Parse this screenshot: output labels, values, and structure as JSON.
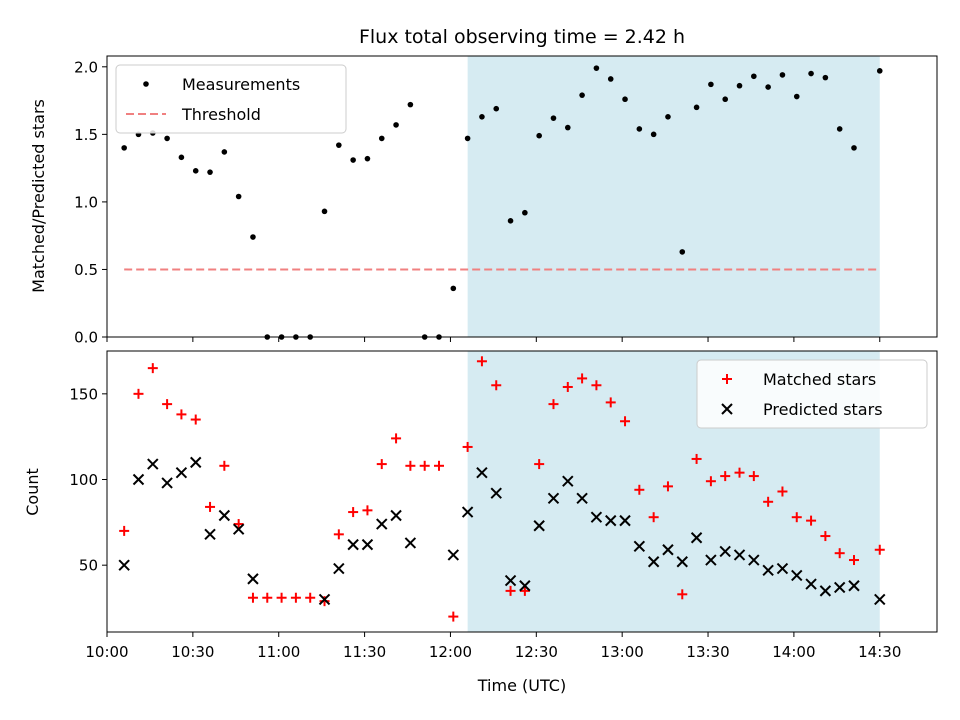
{
  "chart_data": {
    "type": "scatter",
    "title": "Flux total observing time = 2.42 h",
    "xlabel": "Time (UTC)",
    "xlim": [
      "10:00",
      "14:50"
    ],
    "x_tick_labels": [
      "10:00",
      "10:30",
      "11:00",
      "11:30",
      "12:00",
      "12:30",
      "13:00",
      "13:30",
      "14:00",
      "14:30"
    ],
    "shaded_region": {
      "start": "12:06",
      "end": "14:30",
      "color": "#add8e6"
    },
    "panels": [
      {
        "ylabel": "Matched/Predicted stars",
        "ylim": [
          0,
          2.08
        ],
        "y_ticks": [
          "0.0",
          "0.5",
          "1.0",
          "1.5",
          "2.0"
        ],
        "y_tick_values": [
          0,
          0.5,
          1.0,
          1.5,
          2.0
        ],
        "legend_position": "top-left",
        "series": [
          {
            "name": "Measurements",
            "kind": "dots",
            "color": "#000000",
            "x": [
              "10:06",
              "10:11",
              "10:16",
              "10:21",
              "10:26",
              "10:31",
              "10:36",
              "10:41",
              "10:46",
              "10:51",
              "10:56",
              "11:01",
              "11:06",
              "11:11",
              "11:16",
              "11:21",
              "11:26",
              "11:31",
              "11:36",
              "11:41",
              "11:46",
              "11:51",
              "11:56",
              "12:01",
              "12:06",
              "12:11",
              "12:16",
              "12:21",
              "12:26",
              "12:31",
              "12:36",
              "12:41",
              "12:46",
              "12:51",
              "12:56",
              "13:01",
              "13:06",
              "13:11",
              "13:16",
              "13:21",
              "13:26",
              "13:31",
              "13:36",
              "13:41",
              "13:46",
              "13:51",
              "13:56",
              "14:01",
              "14:06",
              "14:11",
              "14:16",
              "14:21",
              "14:30"
            ],
            "y": [
              1.4,
              1.5,
              1.51,
              1.47,
              1.33,
              1.23,
              1.22,
              1.37,
              1.04,
              0.74,
              0.0,
              0.0,
              0.0,
              0.0,
              0.93,
              1.42,
              1.31,
              1.32,
              1.47,
              1.57,
              1.72,
              0.0,
              0.0,
              0.36,
              1.47,
              1.63,
              1.69,
              0.86,
              0.92,
              1.49,
              1.62,
              1.55,
              1.79,
              1.99,
              1.91,
              1.76,
              1.54,
              1.5,
              1.63,
              0.63,
              1.7,
              1.87,
              1.76,
              1.86,
              1.93,
              1.85,
              1.94,
              1.78,
              1.95,
              1.92,
              1.54,
              1.4,
              1.97
            ]
          },
          {
            "name": "Threshold",
            "kind": "dashed-line",
            "color": "#f08080",
            "x": [
              "10:06",
              "14:30"
            ],
            "y": [
              0.5,
              0.5
            ]
          }
        ]
      },
      {
        "ylabel": "Count",
        "ylim": [
          11,
          175
        ],
        "y_ticks": [
          "50",
          "100",
          "150"
        ],
        "y_tick_values": [
          50,
          100,
          150
        ],
        "legend_position": "top-right",
        "series": [
          {
            "name": "Matched stars",
            "kind": "plus",
            "color": "#ff0000",
            "x": [
              "10:06",
              "10:11",
              "10:16",
              "10:21",
              "10:26",
              "10:31",
              "10:36",
              "10:41",
              "10:46",
              "10:51",
              "10:56",
              "11:01",
              "11:06",
              "11:11",
              "11:16",
              "11:21",
              "11:26",
              "11:31",
              "11:36",
              "11:41",
              "11:46",
              "11:51",
              "11:56",
              "12:01",
              "12:06",
              "12:11",
              "12:16",
              "12:21",
              "12:26",
              "12:31",
              "12:36",
              "12:41",
              "12:46",
              "12:51",
              "12:56",
              "13:01",
              "13:06",
              "13:11",
              "13:16",
              "13:21",
              "13:26",
              "13:31",
              "13:36",
              "13:41",
              "13:46",
              "13:51",
              "13:56",
              "14:01",
              "14:06",
              "14:11",
              "14:16",
              "14:21",
              "14:30"
            ],
            "y": [
              70,
              150,
              165,
              144,
              138,
              135,
              84,
              108,
              74,
              31,
              31,
              31,
              31,
              31,
              29,
              68,
              81,
              82,
              109,
              124,
              108,
              108,
              108,
              20,
              119,
              169,
              155,
              35,
              35,
              109,
              144,
              154,
              159,
              155,
              145,
              134,
              94,
              78,
              96,
              33,
              112,
              99,
              102,
              104,
              102,
              87,
              93,
              78,
              76,
              67,
              57,
              53,
              59
            ]
          },
          {
            "name": "Predicted stars",
            "kind": "x",
            "color": "#000000",
            "x": [
              "10:06",
              "10:11",
              "10:16",
              "10:21",
              "10:26",
              "10:31",
              "10:36",
              "10:41",
              "10:46",
              "10:51",
              "11:16",
              "11:21",
              "11:26",
              "11:31",
              "11:36",
              "11:41",
              "11:46",
              "12:01",
              "12:06",
              "12:11",
              "12:16",
              "12:21",
              "12:26",
              "12:31",
              "12:36",
              "12:41",
              "12:46",
              "12:51",
              "12:56",
              "13:01",
              "13:06",
              "13:11",
              "13:16",
              "13:21",
              "13:26",
              "13:31",
              "13:36",
              "13:41",
              "13:46",
              "13:51",
              "13:56",
              "14:01",
              "14:06",
              "14:11",
              "14:16",
              "14:21",
              "14:30"
            ],
            "y": [
              50,
              100,
              109,
              98,
              104,
              110,
              68,
              79,
              71,
              42,
              30,
              48,
              62,
              62,
              74,
              79,
              63,
              56,
              81,
              104,
              92,
              41,
              38,
              73,
              89,
              99,
              89,
              78,
              76,
              76,
              61,
              52,
              59,
              52,
              66,
              53,
              58,
              56,
              53,
              47,
              48,
              44,
              39,
              35,
              37,
              38,
              30
            ]
          }
        ]
      }
    ]
  }
}
